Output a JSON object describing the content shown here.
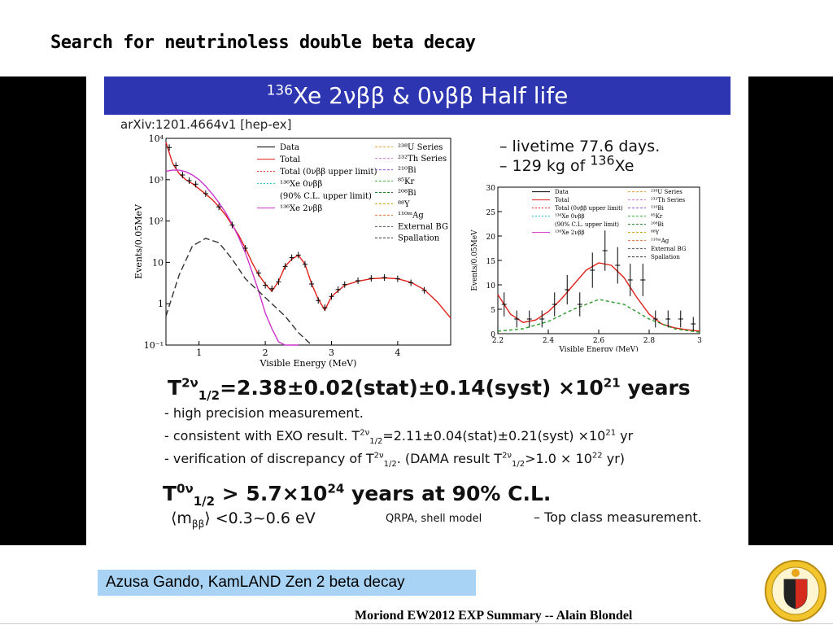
{
  "title": "Search for neutrinoless double beta decay",
  "banner": {
    "sup": "136",
    "text": "Xe 2νββ & 0νββ Half life"
  },
  "arxiv": "arXiv:1201.4664v1 [hep-ex]",
  "notes": [
    {
      "prefix": "– livetime 77.6 days.",
      "sup": "",
      "suffix": ""
    },
    {
      "prefix": "– 129 kg of ",
      "sup": "136",
      "suffix": "Xe"
    }
  ],
  "chart_data": [
    {
      "type": "line",
      "xlabel": "Visible Energy (MeV)",
      "ylabel": "Events/0.05MeV",
      "log_y": true,
      "xlim": [
        0.5,
        4.8
      ],
      "ylim": [
        0.1,
        10000
      ],
      "xticks": [
        "1",
        "2",
        "3",
        "4"
      ],
      "yticks": [
        "10⁻¹",
        "1",
        "10",
        "10²",
        "10³",
        "10⁴"
      ],
      "legend_left": [
        "Data",
        "Total",
        "Total (0νββ upper limit)",
        "¹³⁶Xe 0νββ",
        "(90% C.L. upper limit)",
        "¹³⁶Xe 2νββ"
      ],
      "legend_right": [
        "²³⁸U Series",
        "²³²Th Series",
        "²¹⁰Bi",
        "⁸⁵Kr",
        "²⁰⁸Bi",
        "⁸⁸Y",
        "¹¹⁰ᵐAg",
        "External BG",
        "Spallation"
      ],
      "series": [
        {
          "name": "Total",
          "color": "#e0201a",
          "x": [
            0.5,
            0.6,
            0.7,
            0.8,
            0.9,
            1.0,
            1.1,
            1.2,
            1.3,
            1.4,
            1.5,
            1.6,
            1.7,
            1.8,
            1.9,
            2.0,
            2.1,
            2.2,
            2.3,
            2.4,
            2.5,
            2.6,
            2.7,
            2.8,
            2.9,
            3.0,
            3.2,
            3.4,
            3.6,
            3.8,
            4.0,
            4.2,
            4.4,
            4.6,
            4.8
          ],
          "y": [
            8000,
            2500,
            1400,
            1000,
            800,
            600,
            450,
            330,
            220,
            140,
            80,
            45,
            22,
            10,
            5,
            3,
            2,
            3.5,
            8,
            12,
            15,
            9,
            3,
            1.3,
            0.7,
            1.5,
            2.8,
            3.5,
            4.0,
            4.2,
            4.0,
            3.3,
            2.2,
            1.1,
            0.45
          ]
        },
        {
          "name": "¹³⁶Xe 2νββ",
          "color": "#cc33cc",
          "x": [
            0.5,
            0.6,
            0.7,
            0.8,
            0.9,
            1.0,
            1.1,
            1.2,
            1.3,
            1.4,
            1.5,
            1.6,
            1.7,
            1.8,
            1.9,
            2.0,
            2.1,
            2.2,
            2.3,
            2.4,
            2.5
          ],
          "y": [
            1600,
            1700,
            1700,
            1550,
            1300,
            1000,
            700,
            450,
            280,
            160,
            85,
            40,
            17,
            6,
            2,
            0.6,
            0.25,
            0.12,
            0.1,
            0.1,
            0.1
          ]
        },
        {
          "name": "Spallation",
          "color": "#333333",
          "dash": "8 4",
          "x": [
            0.5,
            0.7,
            0.9,
            1.1,
            1.3,
            1.5,
            1.7,
            1.9,
            2.1,
            2.3,
            2.5,
            2.7
          ],
          "y": [
            0.5,
            5,
            25,
            38,
            30,
            12,
            4,
            2,
            1,
            0.5,
            0.2,
            0.1
          ]
        }
      ],
      "data_points": {
        "name": "Data",
        "x": [
          0.55,
          0.65,
          0.75,
          0.85,
          0.95,
          1.1,
          1.3,
          1.5,
          1.7,
          1.9,
          2.0,
          2.1,
          2.2,
          2.3,
          2.4,
          2.5,
          2.6,
          2.7,
          2.8,
          2.9,
          3.0,
          3.1,
          3.2,
          3.4,
          3.6,
          3.8,
          4.0,
          4.2,
          4.4
        ],
        "y": [
          6000,
          2200,
          1300,
          950,
          780,
          460,
          220,
          80,
          22,
          5.5,
          2.8,
          2.3,
          3.4,
          8,
          13,
          15,
          9,
          3,
          1.2,
          0.8,
          1.5,
          2.2,
          2.9,
          3.6,
          4.1,
          4.3,
          4.0,
          3.2,
          2.1
        ]
      }
    },
    {
      "type": "line",
      "xlabel": "Visible Energy (MeV)",
      "ylabel": "Events/0.05MeV",
      "xlim": [
        2.2,
        3.0
      ],
      "ylim": [
        0,
        30
      ],
      "xticks": [
        "2.2",
        "2.4",
        "2.6",
        "2.8",
        "3"
      ],
      "yticks": [
        "0",
        "5",
        "10",
        "15",
        "20",
        "25",
        "30"
      ],
      "legend_left": [
        "Data",
        "Total",
        "Total (0νββ upper limit)",
        "¹³⁶Xe 0νββ",
        "(90% C.L. upper limit)",
        "¹³⁶Xe 2νββ"
      ],
      "legend_right": [
        "²³⁸U Series",
        "²³²Th Series",
        "²¹⁰Bi",
        "⁸⁵Kr",
        "²⁰⁸Bi",
        "⁸⁸Y",
        "¹¹⁰ᵐAg",
        "External BG",
        "Spallation"
      ],
      "series": [
        {
          "name": "Total",
          "color": "#e0201a",
          "x": [
            2.2,
            2.25,
            2.3,
            2.35,
            2.4,
            2.45,
            2.5,
            2.55,
            2.6,
            2.65,
            2.7,
            2.75,
            2.8,
            2.85,
            2.9,
            2.95,
            3.0
          ],
          "y": [
            8,
            4,
            2.3,
            2.8,
            4.5,
            7,
            10,
            13,
            14.5,
            14,
            11.5,
            7.5,
            4,
            2,
            1.2,
            0.8,
            0.5
          ]
        },
        {
          "name": "²¹⁰Bi",
          "color": "#2a9a2a",
          "dash": "4 3",
          "x": [
            2.2,
            2.3,
            2.4,
            2.5,
            2.6,
            2.7,
            2.8,
            2.9,
            3.0
          ],
          "y": [
            0.5,
            1,
            2.5,
            5,
            7,
            6,
            3,
            1,
            0.3
          ]
        }
      ],
      "data_points": {
        "name": "Data",
        "x": [
          2.225,
          2.275,
          2.325,
          2.375,
          2.425,
          2.475,
          2.525,
          2.575,
          2.625,
          2.675,
          2.725,
          2.775,
          2.825,
          2.875,
          2.925,
          2.975
        ],
        "y": [
          6,
          3,
          3,
          3,
          6,
          9,
          6,
          13,
          17,
          14,
          11,
          11,
          3,
          3,
          3,
          2
        ]
      }
    }
  ],
  "result1": {
    "prefix": "T",
    "sup": "2ν",
    "sub": "1/2",
    "suffix": "=2.38±0.02(stat)±0.14(syst) ×10",
    "exp": "21",
    "unit": " years"
  },
  "bullets": {
    "b1": "- high precision measurement.",
    "b2_text": "- consistent with EXO result.   T",
    "b2_sup": "2ν",
    "b2_sub": "1/2",
    "b2_val": "=2.11±0.04(stat)±0.21(syst) ×10",
    "b2_exp": "21",
    "b2_unit": " yr",
    "b3_text": "- verification of discrepancy of T",
    "b3_sup": "2ν",
    "b3_sub": "1/2",
    "b3_mid": ". (DAMA result T",
    "b3_sup2": "2ν",
    "b3_sub2": "1/2",
    "b3_val": ">1.0 × 10",
    "b3_exp": "22",
    "b3_unit": " yr)"
  },
  "result2": {
    "prefix": "T",
    "sup": "0ν",
    "sub": "1/2",
    "suffix": " > 5.7×10",
    "exp": "24",
    "unit": " years at 90% C.L."
  },
  "mbb": {
    "open": "⟨m",
    "sub": "ββ",
    "close": "⟩  <0.3~0.6 eV"
  },
  "qrpa": "QRPA, shell model",
  "topclass": "– Top class measurement.",
  "author": "Azusa Gando, KamLAND Zen 2 beta decay",
  "footer": "Moriond EW2012 EXP Summary -- Alain Blondel",
  "seal_text": "SCHOLA GENEVENSIS 1559",
  "colors": {
    "banner": "#2d36b0",
    "author_box": "#a8d3f4",
    "total": "#e0201a"
  }
}
